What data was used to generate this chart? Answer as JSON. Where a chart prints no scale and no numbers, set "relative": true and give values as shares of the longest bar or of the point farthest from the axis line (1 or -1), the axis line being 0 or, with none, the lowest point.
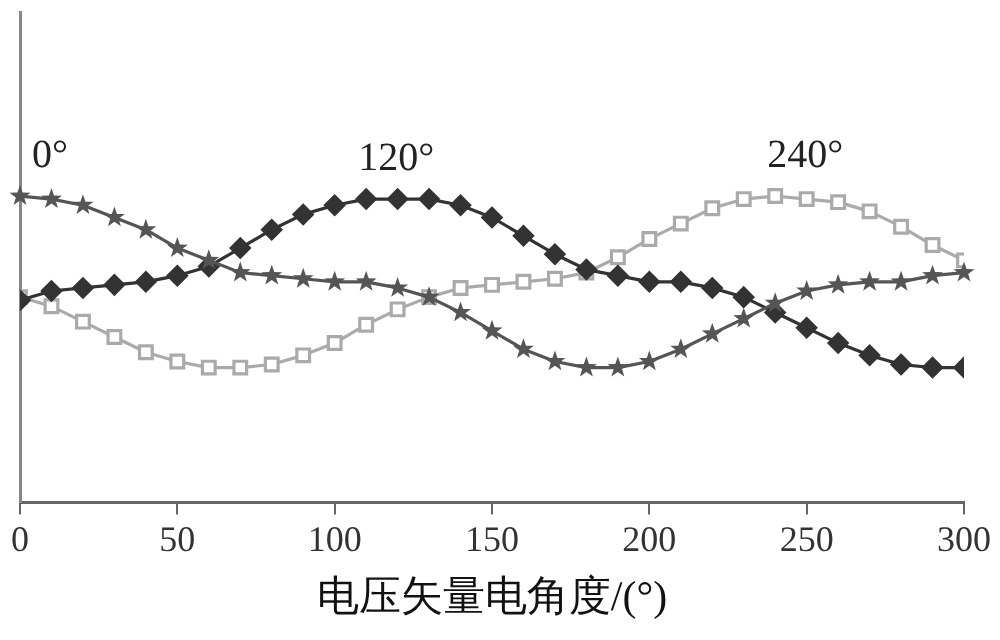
{
  "chart_data": {
    "type": "line",
    "relative": true,
    "xlabel": "电压矢量电角度/(°)",
    "xlim": [
      0,
      300
    ],
    "xticks": [
      0,
      50,
      100,
      150,
      200,
      250,
      300
    ],
    "grid": false,
    "legend": false,
    "line_style": "solid",
    "x": [
      0,
      10,
      20,
      30,
      40,
      50,
      60,
      70,
      80,
      90,
      100,
      110,
      120,
      130,
      140,
      150,
      160,
      170,
      180,
      190,
      200,
      210,
      220,
      230,
      240,
      250,
      260,
      270,
      280,
      290,
      300
    ],
    "series": [
      {
        "color": "#555555",
        "marker": "star",
        "values": [
          1.0,
          0.99,
          0.97,
          0.93,
          0.89,
          0.83,
          0.79,
          0.75,
          0.74,
          0.73,
          0.72,
          0.72,
          0.7,
          0.67,
          0.62,
          0.56,
          0.5,
          0.46,
          0.44,
          0.44,
          0.46,
          0.5,
          0.55,
          0.6,
          0.65,
          0.69,
          0.71,
          0.72,
          0.72,
          0.74,
          0.75
        ]
      },
      {
        "color": "#333333",
        "marker": "diamond",
        "values": [
          0.66,
          0.69,
          0.7,
          0.71,
          0.72,
          0.74,
          0.77,
          0.83,
          0.89,
          0.94,
          0.97,
          0.99,
          0.99,
          0.99,
          0.97,
          0.93,
          0.87,
          0.81,
          0.76,
          0.74,
          0.72,
          0.72,
          0.7,
          0.67,
          0.62,
          0.57,
          0.52,
          0.48,
          0.45,
          0.44,
          0.44
        ]
      },
      {
        "color": "#aaaaaa",
        "marker": "square",
        "values": [
          0.67,
          0.64,
          0.59,
          0.54,
          0.49,
          0.46,
          0.44,
          0.44,
          0.45,
          0.48,
          0.52,
          0.58,
          0.63,
          0.67,
          0.7,
          0.71,
          0.72,
          0.73,
          0.75,
          0.8,
          0.86,
          0.91,
          0.96,
          0.99,
          1.0,
          0.99,
          0.98,
          0.95,
          0.9,
          0.84,
          0.79
        ]
      }
    ],
    "annotations": [
      "0°",
      "120°",
      "240°"
    ]
  }
}
